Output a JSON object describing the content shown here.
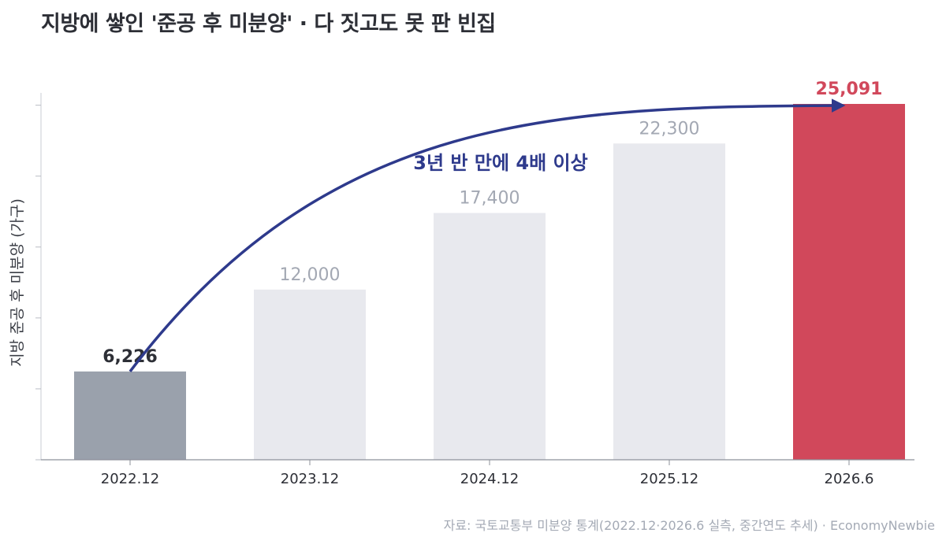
{
  "title": "지방에 쌓인 '준공 후 미분양' · 다 짓고도 못 판 빈집",
  "source": "자료: 국토교통부 미분양 통계(2022.12·2026.6 실측, 중간연도 추세) · EconomyNewbie",
  "colors": {
    "first_bar": "#9aa1ac",
    "middle_bar": "#e8e9ee",
    "last_bar": "#d1485b",
    "arrow": "#2e3a8c",
    "first_label": "#2d2f36",
    "middle_label": "#a3a8b3",
    "last_label": "#d1485b"
  },
  "chart_data": {
    "type": "bar",
    "categories": [
      "2022.12",
      "2023.12",
      "2024.12",
      "2025.12",
      "2026.6"
    ],
    "values": [
      6226,
      12000,
      17400,
      22300,
      25091
    ],
    "value_labels": [
      "6,226",
      "12,000",
      "17,400",
      "22,300",
      "25,091"
    ],
    "ylabel": "지방 준공 후 미분양 (가구)",
    "ylim": [
      0,
      25091
    ],
    "y_tick_values": [
      0,
      5000,
      10000,
      15000,
      20000,
      25000
    ],
    "grid": false,
    "annotation": {
      "text": "3년 반 만에 4배 이상",
      "from_category": "2022.12",
      "to_category": "2026.6"
    }
  }
}
